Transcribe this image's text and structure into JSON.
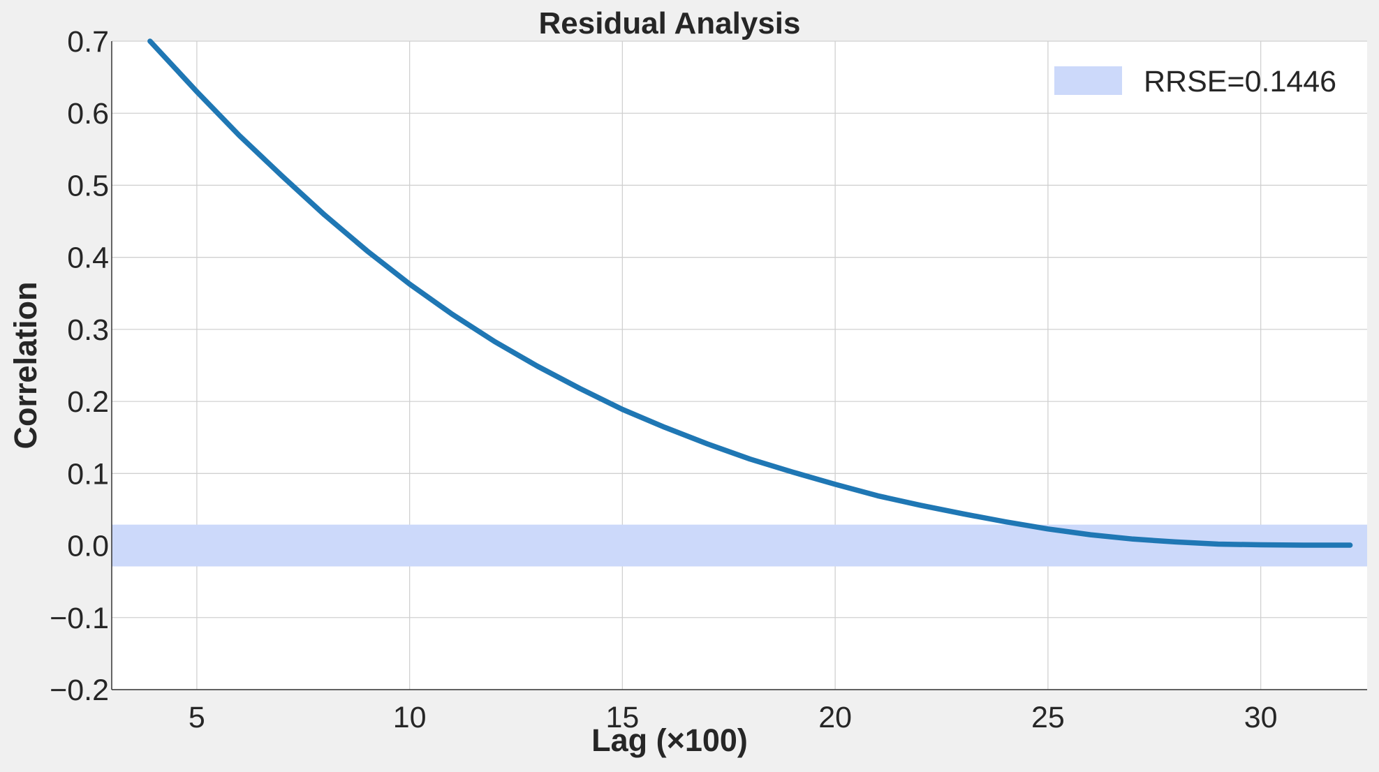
{
  "chart_data": {
    "type": "line",
    "title": "Residual Analysis",
    "xlabel": "Lag (×100)",
    "ylabel": "Correlation",
    "xlim": [
      3,
      32.5
    ],
    "ylim": [
      -0.2,
      0.7
    ],
    "xticks": [
      5,
      10,
      15,
      20,
      25,
      30
    ],
    "xtick_labels": [
      "5",
      "10",
      "15",
      "20",
      "25",
      "30"
    ],
    "yticks": [
      -0.2,
      -0.1,
      0.0,
      0.1,
      0.2,
      0.3,
      0.4,
      0.5,
      0.6,
      0.7
    ],
    "ytick_labels": [
      "−0.2",
      "−0.1",
      "0.0",
      "0.1",
      "0.2",
      "0.3",
      "0.4",
      "0.5",
      "0.6",
      "0.7"
    ],
    "grid": true,
    "legend_position": "top-right",
    "band": {
      "label": "RRSE=0.1446",
      "y_low": -0.029,
      "y_high": 0.029,
      "color": "#ccd9fa"
    },
    "series": [
      {
        "color": "#1f77b4",
        "x": [
          3.9,
          5,
          6,
          7,
          8,
          9,
          10,
          11,
          12,
          13,
          14,
          15,
          16,
          17,
          18,
          19,
          20,
          21,
          22,
          23,
          24,
          25,
          26,
          27,
          28,
          29,
          30,
          31,
          32.1
        ],
        "y": [
          0.7,
          0.63,
          0.569,
          0.513,
          0.459,
          0.409,
          0.363,
          0.321,
          0.283,
          0.249,
          0.218,
          0.189,
          0.164,
          0.141,
          0.12,
          0.102,
          0.085,
          0.069,
          0.056,
          0.044,
          0.033,
          0.023,
          0.015,
          0.009,
          0.005,
          0.002,
          0.001,
          0.0005,
          0.0005
        ]
      }
    ]
  }
}
